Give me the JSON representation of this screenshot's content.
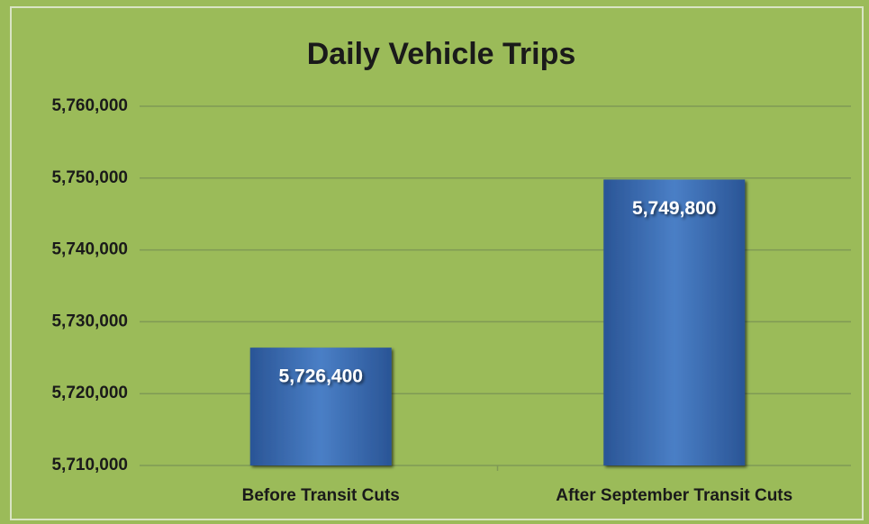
{
  "chart_data": {
    "type": "bar",
    "title": "Daily Vehicle Trips",
    "categories": [
      "Before Transit Cuts",
      "After September Transit Cuts"
    ],
    "values": [
      5726400,
      5749800
    ],
    "value_labels": [
      "5,726,400",
      "5,749,800"
    ],
    "color": "#3a6db5",
    "ylim": [
      5710000,
      5760000
    ],
    "yticks": [
      {
        "value": 5710000,
        "label": "5,710,000"
      },
      {
        "value": 5720000,
        "label": "5,720,000"
      },
      {
        "value": 5730000,
        "label": "5,730,000"
      },
      {
        "value": 5740000,
        "label": "5,740,000"
      },
      {
        "value": 5750000,
        "label": "5,750,000"
      },
      {
        "value": 5760000,
        "label": "5,760,000"
      }
    ],
    "grid": true
  }
}
